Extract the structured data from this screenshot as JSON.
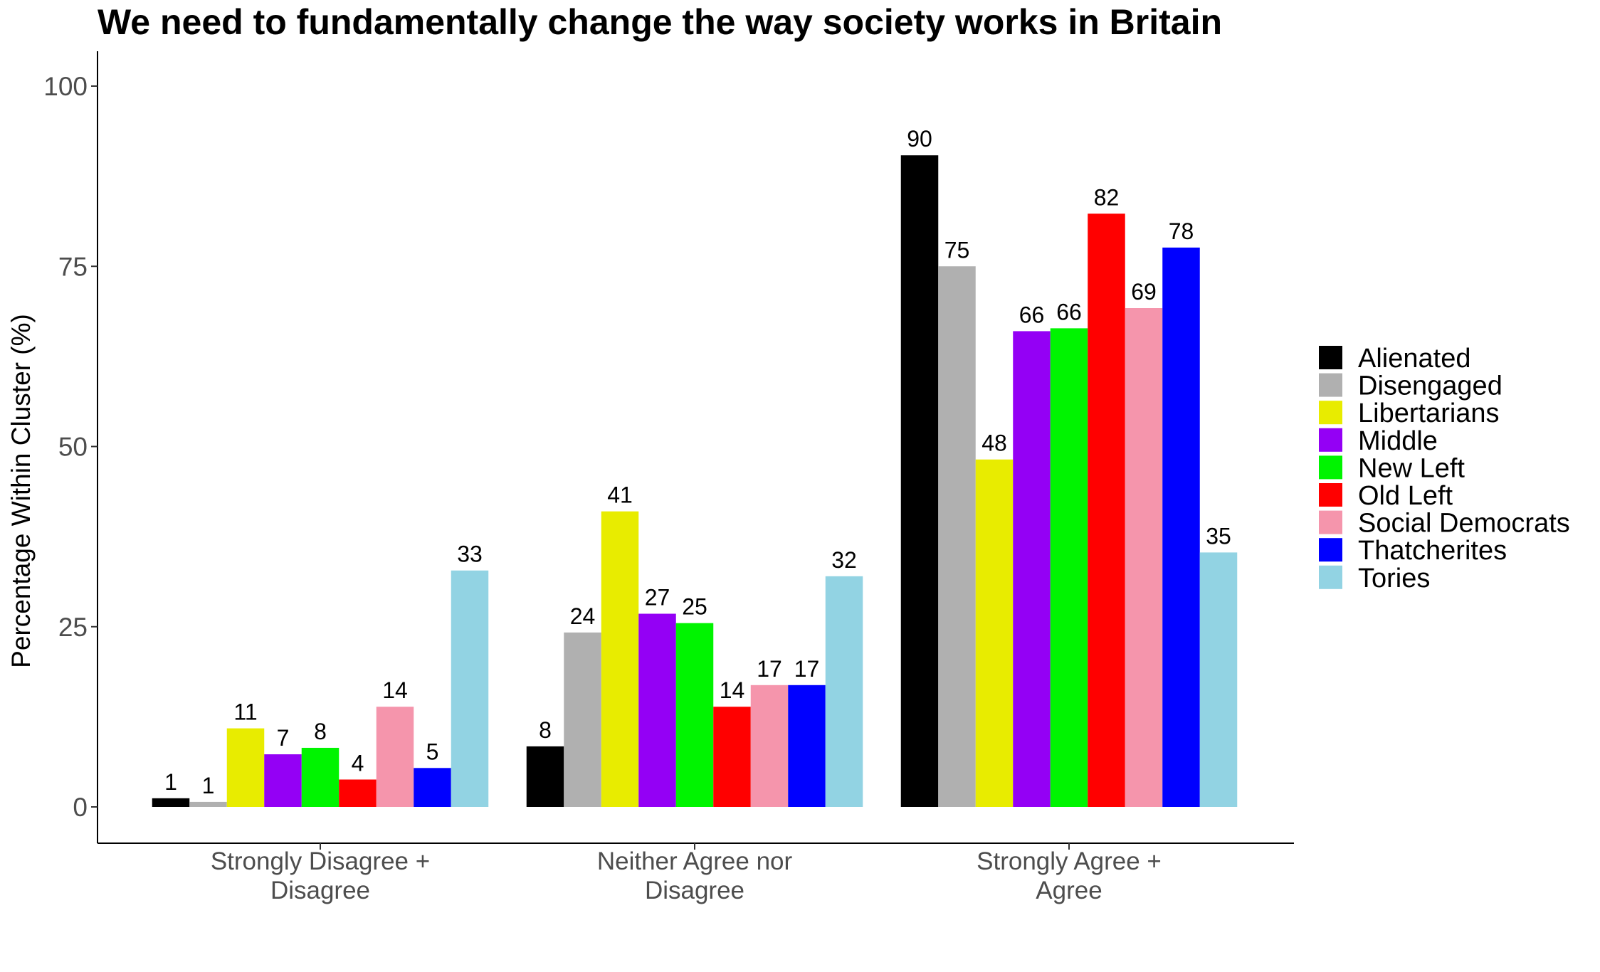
{
  "chart_data": {
    "type": "bar",
    "title": "We need to fundamentally change the way society works in Britain",
    "xlabel": "",
    "ylabel": "Percentage Within Cluster (%)",
    "ylim": [
      -5,
      105
    ],
    "yticks": [
      0,
      25,
      50,
      75,
      100
    ],
    "grid": false,
    "legend_position": "right",
    "categories": [
      [
        "Strongly Disagree +",
        "Disagree"
      ],
      [
        "Neither Agree nor",
        "Disagree"
      ],
      [
        "Strongly Agree +",
        "Agree"
      ]
    ],
    "series": [
      {
        "name": "Alienated",
        "color": "#000000",
        "values": [
          1.2,
          8.4,
          90.4
        ],
        "labels": [
          "1",
          "8",
          "90"
        ]
      },
      {
        "name": "Disengaged",
        "color": "#B0B0B0",
        "values": [
          0.7,
          24.2,
          75.0
        ],
        "labels": [
          "1",
          "24",
          "75"
        ]
      },
      {
        "name": "Libertarians",
        "color": "#E8EC00",
        "values": [
          10.9,
          41.0,
          48.2
        ],
        "labels": [
          "11",
          "41",
          "48"
        ]
      },
      {
        "name": "Middle",
        "color": "#9400F5",
        "values": [
          7.3,
          26.8,
          66.0
        ],
        "labels": [
          "7",
          "27",
          "66"
        ]
      },
      {
        "name": "New Left",
        "color": "#00F400",
        "values": [
          8.2,
          25.5,
          66.4
        ],
        "labels": [
          "8",
          "25",
          "66"
        ]
      },
      {
        "name": "Old Left",
        "color": "#FF0000",
        "values": [
          3.8,
          13.9,
          82.3
        ],
        "labels": [
          "4",
          "14",
          "82"
        ]
      },
      {
        "name": "Social Democrats",
        "color": "#F595AC",
        "values": [
          13.9,
          16.9,
          69.2
        ],
        "labels": [
          "14",
          "17",
          "69"
        ]
      },
      {
        "name": "Thatcherites",
        "color": "#0000FF",
        "values": [
          5.4,
          16.9,
          77.6
        ],
        "labels": [
          "5",
          "17",
          "78"
        ]
      },
      {
        "name": "Tories",
        "color": "#92D3E3",
        "values": [
          32.8,
          32.0,
          35.3
        ],
        "labels": [
          "33",
          "32",
          "35"
        ]
      }
    ]
  }
}
